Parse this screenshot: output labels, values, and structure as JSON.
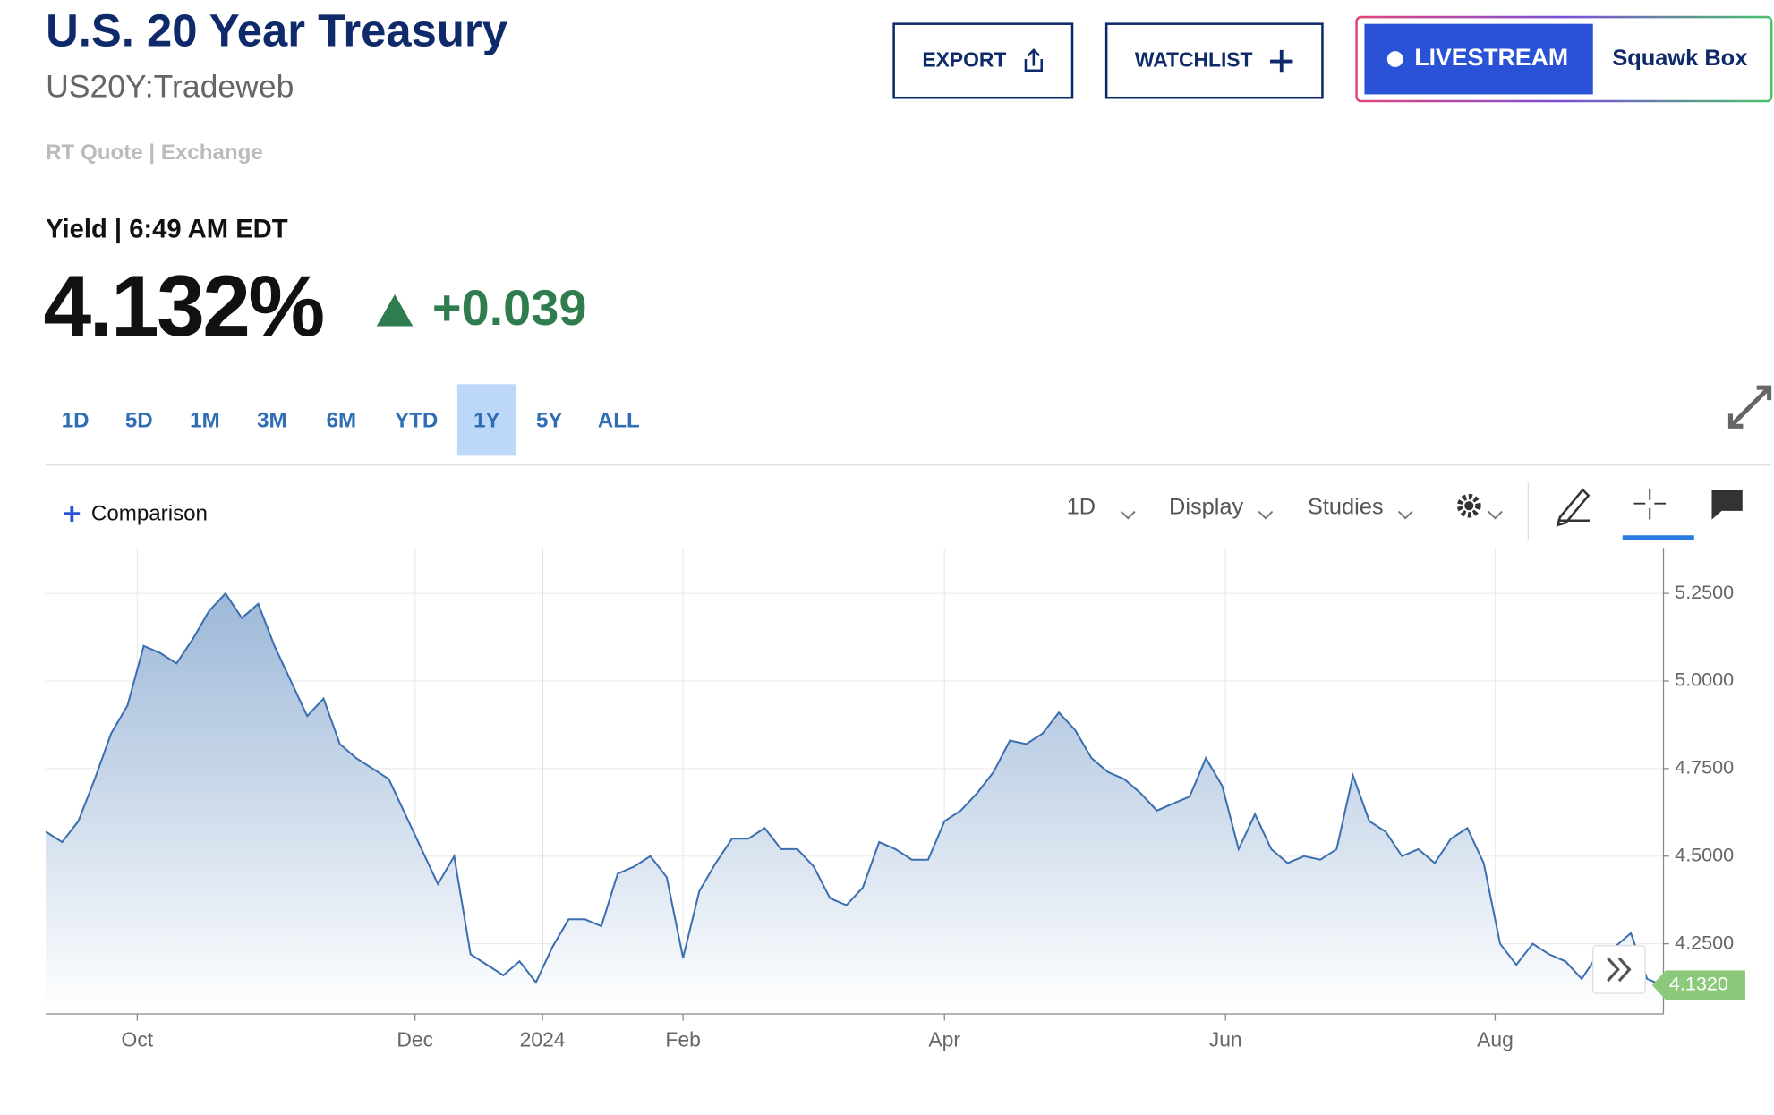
{
  "header": {
    "title": "U.S. 20 Year Treasury",
    "symbol": "US20Y:Tradeweb",
    "quote_source": "RT Quote | Exchange",
    "buttons": {
      "export": "EXPORT",
      "watchlist": "WATCHLIST",
      "livestream": "LIVESTREAM",
      "show": "Squawk Box"
    }
  },
  "quote": {
    "label": "Yield | 6:49 AM EDT",
    "price": "4.132%",
    "change": "+0.039"
  },
  "tabs": {
    "items": [
      "1D",
      "5D",
      "1M",
      "3M",
      "6M",
      "YTD",
      "1Y",
      "5Y",
      "ALL"
    ],
    "active": "1Y"
  },
  "toolbar": {
    "comparison": "Comparison",
    "interval": "1D",
    "display": "Display",
    "studies": "Studies"
  },
  "chart_data": {
    "type": "area",
    "color": "#3b6fb0",
    "values": [
      4.57,
      4.54,
      4.6,
      4.72,
      4.85,
      4.93,
      5.1,
      5.08,
      5.05,
      5.12,
      5.2,
      5.25,
      5.18,
      5.22,
      5.1,
      5.0,
      4.9,
      4.95,
      4.82,
      4.78,
      4.75,
      4.72,
      4.62,
      4.52,
      4.42,
      4.5,
      4.22,
      4.19,
      4.16,
      4.2,
      4.14,
      4.24,
      4.32,
      4.32,
      4.3,
      4.45,
      4.47,
      4.5,
      4.44,
      4.21,
      4.4,
      4.48,
      4.55,
      4.55,
      4.58,
      4.52,
      4.52,
      4.47,
      4.38,
      4.36,
      4.41,
      4.54,
      4.52,
      4.49,
      4.49,
      4.6,
      4.63,
      4.68,
      4.74,
      4.83,
      4.82,
      4.85,
      4.91,
      4.86,
      4.78,
      4.74,
      4.72,
      4.68,
      4.63,
      4.65,
      4.67,
      4.78,
      4.7,
      4.52,
      4.62,
      4.52,
      4.48,
      4.5,
      4.49,
      4.52,
      4.73,
      4.6,
      4.57,
      4.5,
      4.52,
      4.48,
      4.55,
      4.58,
      4.48,
      4.25,
      4.19,
      4.25,
      4.22,
      4.2,
      4.15,
      4.22,
      4.24,
      4.28,
      4.15,
      4.13
    ],
    "xlim": [
      0,
      99
    ],
    "xticks": [
      {
        "value": 5.6,
        "label": "Oct"
      },
      {
        "value": 22.6,
        "label": "Dec"
      },
      {
        "value": 30.4,
        "label": "2024"
      },
      {
        "value": 39.0,
        "label": "Feb"
      },
      {
        "value": 55.0,
        "label": "Apr"
      },
      {
        "value": 72.2,
        "label": "Jun"
      },
      {
        "value": 88.7,
        "label": "Aug"
      }
    ],
    "ylim": [
      4.05,
      5.38
    ],
    "yticks": [
      {
        "value": 4.25,
        "label": "4.2500"
      },
      {
        "value": 4.5,
        "label": "4.5000"
      },
      {
        "value": 4.75,
        "label": "4.7500"
      },
      {
        "value": 5.0,
        "label": "5.0000"
      },
      {
        "value": 5.25,
        "label": "5.2500"
      }
    ],
    "last_value": 4.132,
    "last_value_label": "4.1320",
    "grid": true
  }
}
